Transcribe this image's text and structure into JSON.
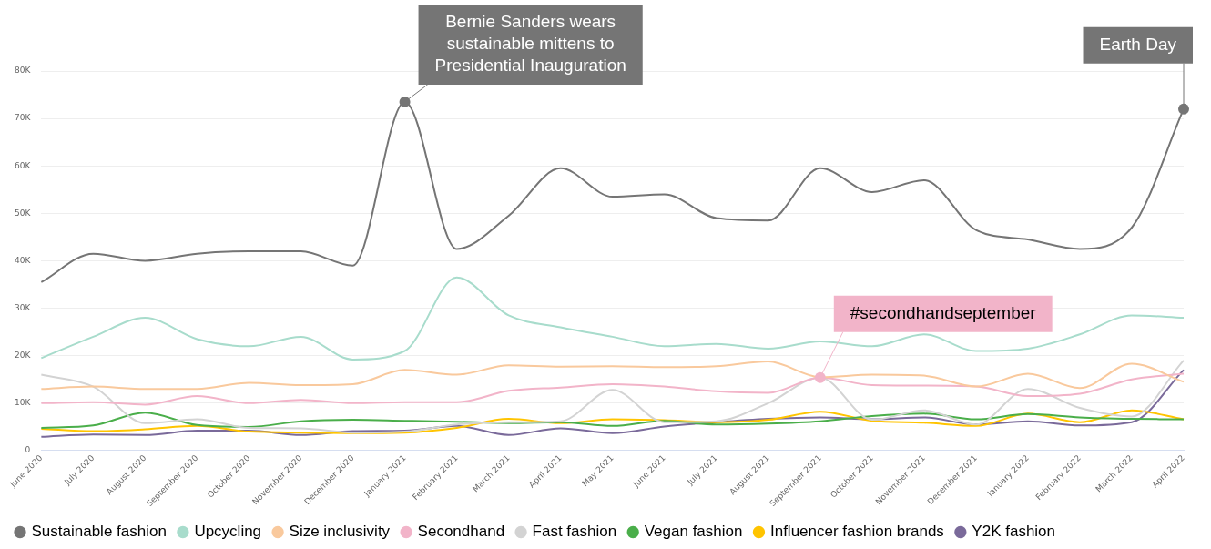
{
  "chart_data": {
    "type": "line",
    "categories": [
      "June 2020",
      "July 2020",
      "August 2020",
      "September 2020",
      "October 2020",
      "November 2020",
      "December 2020",
      "January 2021",
      "February 2021",
      "March 2021",
      "April 2021",
      "May 2021",
      "June 2021",
      "July 2021",
      "August 2021",
      "September 2021",
      "October 2021",
      "November 2021",
      "December 2021",
      "January 2022",
      "February 2022",
      "March 2022",
      "April 2022"
    ],
    "series": [
      {
        "name": "Sustainable fashion",
        "color": "#757575",
        "values": [
          35500,
          41500,
          40000,
          41500,
          42000,
          42000,
          39000,
          73500,
          42500,
          49500,
          59500,
          53500,
          54000,
          49000,
          48500,
          59500,
          54500,
          57000,
          46500,
          44500,
          42500,
          47000,
          72000
        ]
      },
      {
        "name": "Upcycling",
        "color": "#a8dccc",
        "values": [
          19500,
          24000,
          28000,
          23500,
          22000,
          24000,
          19200,
          21000,
          36500,
          28500,
          26000,
          24000,
          22000,
          22500,
          21500,
          23000,
          22000,
          24500,
          21000,
          21500,
          24500,
          28500,
          28000
        ]
      },
      {
        "name": "Size inclusivity",
        "color": "#f9c99d",
        "values": [
          13000,
          13500,
          13000,
          13000,
          14300,
          13800,
          14000,
          17000,
          16000,
          18000,
          17700,
          17800,
          17600,
          17800,
          18800,
          15500,
          16000,
          15800,
          13500,
          16200,
          13200,
          18300,
          14500
        ]
      },
      {
        "name": "Secondhand",
        "color": "#f2b4c9",
        "values": [
          10000,
          10200,
          9700,
          11500,
          10000,
          10700,
          10000,
          10200,
          10200,
          12600,
          13300,
          14000,
          13500,
          12500,
          12200,
          15400,
          13800,
          13700,
          13500,
          11500,
          12000,
          15000,
          16200
        ]
      },
      {
        "name": "Fast fashion",
        "color": "#d3d3d3",
        "values": [
          16000,
          13500,
          5800,
          6600,
          4800,
          4700,
          3800,
          4000,
          5500,
          6000,
          6200,
          12800,
          6000,
          6200,
          10000,
          15400,
          6500,
          8500,
          5500,
          13000,
          9000,
          7200,
          19000
        ]
      },
      {
        "name": "Vegan fashion",
        "color": "#4aae4a",
        "values": [
          4800,
          5300,
          8000,
          5400,
          5000,
          6200,
          6500,
          6300,
          6100,
          5800,
          6000,
          5200,
          6300,
          5500,
          5700,
          6200,
          7300,
          7800,
          6600,
          7700,
          7000,
          6700,
          6600
        ]
      },
      {
        "name": "Influencer fashion brands",
        "color": "#ffc400",
        "values": [
          4600,
          4100,
          4500,
          5200,
          4000,
          3800,
          3700,
          3800,
          4800,
          6700,
          5800,
          6600,
          6400,
          6000,
          6500,
          8200,
          6300,
          5900,
          5200,
          7800,
          6000,
          8500,
          6600
        ]
      },
      {
        "name": "Y2K fashion",
        "color": "#7a6a9a",
        "values": [
          2900,
          3400,
          3300,
          4200,
          4200,
          3300,
          4100,
          4200,
          5200,
          3300,
          4700,
          3700,
          5100,
          6000,
          6700,
          7000,
          6600,
          7000,
          5500,
          6200,
          5300,
          6000,
          17000
        ]
      }
    ],
    "ylim": [
      0,
      80000
    ],
    "yticks": [
      {
        "value": 0,
        "label": "0"
      },
      {
        "value": 10000,
        "label": "10K"
      },
      {
        "value": 20000,
        "label": "20K"
      },
      {
        "value": 30000,
        "label": "30K"
      },
      {
        "value": 40000,
        "label": "40K"
      },
      {
        "value": 50000,
        "label": "50K"
      },
      {
        "value": 60000,
        "label": "60K"
      },
      {
        "value": 70000,
        "label": "70K"
      },
      {
        "value": 80000,
        "label": "80K"
      }
    ],
    "grid": "y",
    "legend": "bottom",
    "marker": "none",
    "line_style": "solid",
    "annotations": [
      {
        "text": "Bernie Sanders wears sustainable mittens to Presidential Inauguration",
        "x": "January 2021",
        "y": 73500
      },
      {
        "text": "#secondhandseptember",
        "x": "September 2021",
        "y": 15400
      },
      {
        "text": "Earth Day",
        "x": "April 2022",
        "y": 72000
      }
    ]
  }
}
